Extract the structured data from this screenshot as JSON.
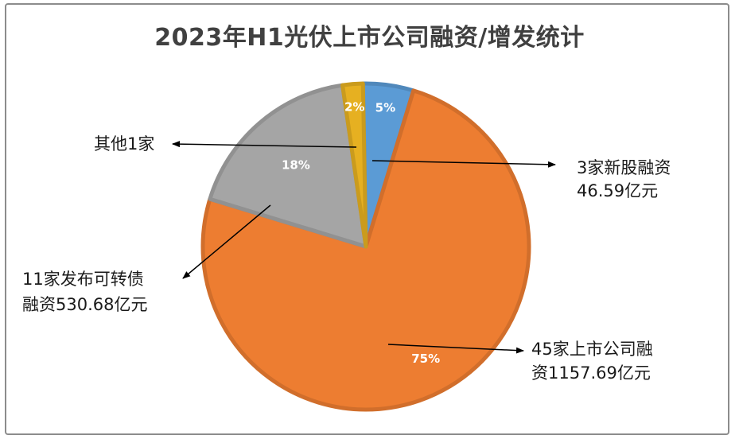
{
  "chart_data": {
    "type": "pie",
    "title": "2023年H1光伏上市公司融资/增发统计",
    "slices": [
      {
        "label_lines": [
          "3家新股融资",
          "46.59亿元"
        ],
        "value": 5,
        "pct_label": "5%",
        "color": "#5b9bd5"
      },
      {
        "label_lines": [
          "45家上市公司融",
          "资1157.69亿元"
        ],
        "value": 75,
        "pct_label": "75%",
        "color": "#ed7d31"
      },
      {
        "label_lines": [
          "11家发布可转债",
          "融资530.68亿元"
        ],
        "value": 18,
        "pct_label": "18%",
        "color": "#a5a5a5"
      },
      {
        "label_lines": [
          "其他1家"
        ],
        "value": 2,
        "pct_label": "2%",
        "color": "#e6b021"
      }
    ]
  }
}
